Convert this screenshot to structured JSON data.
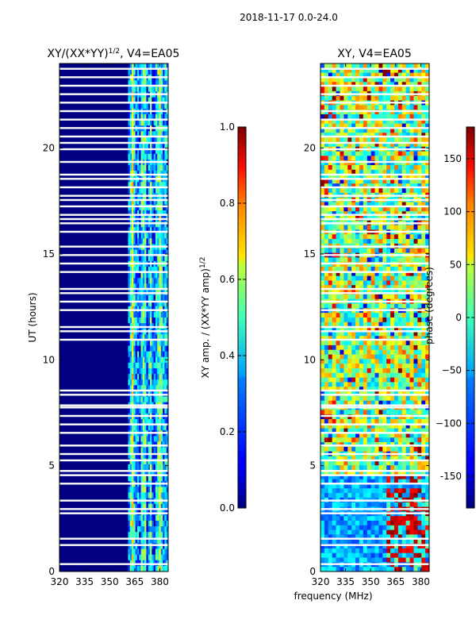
{
  "suptitle": "2018-11-17 0.0-24.0",
  "chart_data": [
    {
      "type": "heatmap",
      "title_prefix": "XY/(XX*YY)",
      "title_exp": "1/2",
      "title_suffix": ", V4=EA05",
      "xlabel": "",
      "ylabel": "UT (hours)",
      "xlim": [
        320,
        385
      ],
      "ylim": [
        0,
        24
      ],
      "xticks": [
        "320",
        "335",
        "350",
        "365",
        "380"
      ],
      "yticks": [
        "0",
        "5",
        "10",
        "15",
        "20"
      ],
      "colormap": "jet",
      "active_band_mhz": [
        361,
        385
      ],
      "background_value": 0.0,
      "colorbar": {
        "label_main": "XY amp. / (XX*YY amp)",
        "label_exp": "1/2",
        "range": [
          0.0,
          1.0
        ],
        "ticks": [
          "0.0",
          "0.2",
          "0.4",
          "0.6",
          "0.8",
          "1.0"
        ]
      }
    },
    {
      "type": "heatmap",
      "title": "XY, V4=EA05",
      "xlabel": "frequency (MHz)",
      "ylabel": "",
      "xlim": [
        320,
        385
      ],
      "ylim": [
        0,
        24
      ],
      "xticks": [
        "320",
        "335",
        "350",
        "365",
        "380"
      ],
      "yticks": [
        "0",
        "5",
        "10",
        "15",
        "20"
      ],
      "colormap": "jet",
      "colorbar": {
        "label": "phase (degrees)",
        "range": [
          -180,
          180
        ],
        "ticks": [
          "-150",
          "−100",
          "−50",
          "0",
          "50",
          "100",
          "150"
        ]
      }
    }
  ],
  "gaps_hours": [
    0.35,
    1.25,
    1.55,
    2.75,
    2.95,
    3.35,
    4.15,
    4.55,
    4.75,
    5.25,
    5.55,
    5.95,
    6.55,
    6.95,
    7.35,
    7.75,
    7.85,
    8.35,
    8.55,
    10.95,
    11.35,
    11.55,
    12.35,
    12.75,
    13.15,
    13.35,
    14.15,
    14.55,
    14.95,
    15.35,
    16.05,
    16.45,
    16.65,
    16.85,
    17.25,
    17.55,
    17.75,
    18.15,
    18.55,
    18.75,
    19.35,
    19.95,
    20.25,
    20.55,
    20.95,
    21.35,
    21.75,
    22.15,
    22.55,
    22.95,
    23.35,
    23.75
  ]
}
